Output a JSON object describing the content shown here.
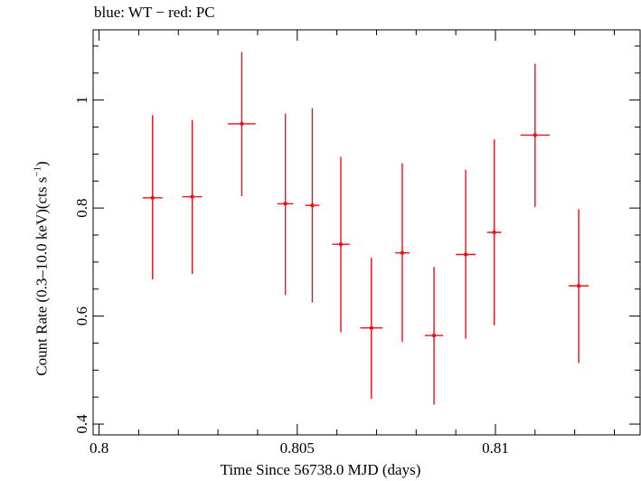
{
  "chart_data": {
    "type": "scatter",
    "title": "blue: WT − red: PC",
    "xlabel": "Time Since 56738.0 MJD (days)",
    "ylabel_main": "Count Rate (0.3–10.0 keV)(cts s",
    "ylabel_sup": "−1",
    "ylabel_close": ")",
    "xlim": [
      0.79985,
      0.81365
    ],
    "ylim": [
      0.38,
      1.13
    ],
    "xticks_major": [
      0.8,
      0.805,
      0.81
    ],
    "xtick_labels": [
      "0.8",
      "0.805",
      "0.81"
    ],
    "yticks_major": [
      0.4,
      0.6,
      0.8,
      1.0
    ],
    "ytick_labels": [
      "0.4",
      "0.6",
      "0.8",
      "1"
    ],
    "grid": false,
    "series": [
      {
        "name": "PC",
        "color": "#e8101a",
        "points": [
          {
            "x": 0.80135,
            "xerr": 0.00025,
            "y": 0.819,
            "yerr_lo": 0.151,
            "yerr_hi": 0.153
          },
          {
            "x": 0.80235,
            "xerr": 0.00025,
            "y": 0.821,
            "yerr_lo": 0.143,
            "yerr_hi": 0.142
          },
          {
            "x": 0.8036,
            "xerr": 0.00035,
            "y": 0.956,
            "yerr_lo": 0.134,
            "yerr_hi": 0.133
          },
          {
            "x": 0.8047,
            "xerr": 0.0002,
            "y": 0.808,
            "yerr_lo": 0.169,
            "yerr_hi": 0.167
          },
          {
            "x": 0.80538,
            "xerr": 0.00018,
            "y": 0.805,
            "yerr_lo": 0.18,
            "yerr_hi": 0.18
          },
          {
            "x": 0.8061,
            "xerr": 0.00022,
            "y": 0.733,
            "yerr_lo": 0.163,
            "yerr_hi": 0.162
          },
          {
            "x": 0.80687,
            "xerr": 0.00028,
            "y": 0.578,
            "yerr_lo": 0.131,
            "yerr_hi": 0.13
          },
          {
            "x": 0.80765,
            "xerr": 0.00018,
            "y": 0.717,
            "yerr_lo": 0.165,
            "yerr_hi": 0.166
          },
          {
            "x": 0.80845,
            "xerr": 0.00023,
            "y": 0.564,
            "yerr_lo": 0.128,
            "yerr_hi": 0.127
          },
          {
            "x": 0.80925,
            "xerr": 0.00025,
            "y": 0.714,
            "yerr_lo": 0.156,
            "yerr_hi": 0.157
          },
          {
            "x": 0.80997,
            "xerr": 0.00018,
            "y": 0.755,
            "yerr_lo": 0.172,
            "yerr_hi": 0.172
          },
          {
            "x": 0.811,
            "xerr": 0.00037,
            "y": 0.935,
            "yerr_lo": 0.133,
            "yerr_hi": 0.132
          },
          {
            "x": 0.8121,
            "xerr": 0.00025,
            "y": 0.656,
            "yerr_lo": 0.143,
            "yerr_hi": 0.142
          }
        ]
      }
    ]
  }
}
